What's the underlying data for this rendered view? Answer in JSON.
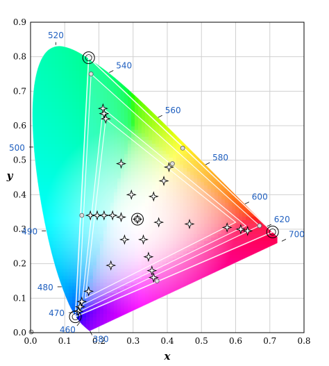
{
  "colors": {
    "background": "#ffffff",
    "grid": "#d0d0d0",
    "wavelength_label": "#1f5fbf",
    "gamut_outline": "#ffffff",
    "marker": "#000000"
  },
  "chart_data": {
    "type": "scatter",
    "title": "",
    "xlabel": "x",
    "ylabel": "y",
    "xlim": [
      0.0,
      0.8
    ],
    "ylim": [
      0.0,
      0.9
    ],
    "grid": true,
    "x_ticks": [
      "0.0",
      "0.1",
      "0.2",
      "0.3",
      "0.4",
      "0.5",
      "0.6",
      "0.7",
      "0.8"
    ],
    "y_ticks": [
      "0.0",
      "0.1",
      "0.2",
      "0.3",
      "0.4",
      "0.5",
      "0.6",
      "0.7",
      "0.8",
      "0.9"
    ],
    "spectral_locus": [
      {
        "nm": 380,
        "x": 0.1741,
        "y": 0.005
      },
      {
        "nm": 410,
        "x": 0.1726,
        "y": 0.0048
      },
      {
        "nm": 430,
        "x": 0.1689,
        "y": 0.0069
      },
      {
        "nm": 450,
        "x": 0.1566,
        "y": 0.0177
      },
      {
        "nm": 460,
        "x": 0.144,
        "y": 0.0297
      },
      {
        "nm": 470,
        "x": 0.1241,
        "y": 0.0578
      },
      {
        "nm": 475,
        "x": 0.1096,
        "y": 0.0868
      },
      {
        "nm": 480,
        "x": 0.0913,
        "y": 0.1327
      },
      {
        "nm": 485,
        "x": 0.0687,
        "y": 0.2007
      },
      {
        "nm": 490,
        "x": 0.0454,
        "y": 0.295
      },
      {
        "nm": 495,
        "x": 0.0235,
        "y": 0.4127
      },
      {
        "nm": 500,
        "x": 0.0082,
        "y": 0.5384
      },
      {
        "nm": 505,
        "x": 0.0039,
        "y": 0.6548
      },
      {
        "nm": 510,
        "x": 0.0139,
        "y": 0.7502
      },
      {
        "nm": 515,
        "x": 0.0389,
        "y": 0.812
      },
      {
        "nm": 520,
        "x": 0.0743,
        "y": 0.8338
      },
      {
        "nm": 525,
        "x": 0.1142,
        "y": 0.8262
      },
      {
        "nm": 530,
        "x": 0.1547,
        "y": 0.8059
      },
      {
        "nm": 540,
        "x": 0.2296,
        "y": 0.7543
      },
      {
        "nm": 550,
        "x": 0.3016,
        "y": 0.6923
      },
      {
        "nm": 560,
        "x": 0.3731,
        "y": 0.6245
      },
      {
        "nm": 570,
        "x": 0.4441,
        "y": 0.5547
      },
      {
        "nm": 580,
        "x": 0.5125,
        "y": 0.4866
      },
      {
        "nm": 590,
        "x": 0.5752,
        "y": 0.4242
      },
      {
        "nm": 600,
        "x": 0.627,
        "y": 0.3725
      },
      {
        "nm": 610,
        "x": 0.6658,
        "y": 0.334
      },
      {
        "nm": 620,
        "x": 0.6915,
        "y": 0.3083
      },
      {
        "nm": 640,
        "x": 0.719,
        "y": 0.2809
      },
      {
        "nm": 700,
        "x": 0.7347,
        "y": 0.2653
      }
    ],
    "wavelength_labels": [
      {
        "text": "520",
        "x": 0.074,
        "y": 0.834,
        "side": "up"
      },
      {
        "text": "540",
        "x": 0.23,
        "y": 0.754,
        "side": "right"
      },
      {
        "text": "560",
        "x": 0.373,
        "y": 0.624,
        "side": "right"
      },
      {
        "text": "580",
        "x": 0.512,
        "y": 0.487,
        "side": "right"
      },
      {
        "text": "600",
        "x": 0.627,
        "y": 0.373,
        "side": "right"
      },
      {
        "text": "620",
        "x": 0.692,
        "y": 0.308,
        "side": "right"
      },
      {
        "text": "700",
        "x": 0.735,
        "y": 0.265,
        "side": "right"
      },
      {
        "text": "500",
        "x": 0.008,
        "y": 0.538,
        "side": "left"
      },
      {
        "text": "490",
        "x": 0.045,
        "y": 0.295,
        "side": "left"
      },
      {
        "text": "480",
        "x": 0.091,
        "y": 0.133,
        "side": "left"
      },
      {
        "text": "470",
        "x": 0.124,
        "y": 0.058,
        "side": "left"
      },
      {
        "text": "460",
        "x": 0.144,
        "y": 0.03,
        "side": "down"
      },
      {
        "text": "380",
        "x": 0.174,
        "y": 0.005,
        "side": "downright"
      }
    ],
    "gamuts": [
      {
        "vertices": [
          [
            0.17,
            0.797
          ],
          [
            0.708,
            0.292
          ],
          [
            0.131,
            0.046
          ]
        ]
      },
      {
        "vertices": [
          [
            0.177,
            0.75
          ],
          [
            0.67,
            0.31
          ],
          [
            0.14,
            0.06
          ]
        ]
      },
      {
        "vertices": [
          [
            0.212,
            0.65
          ],
          [
            0.63,
            0.31
          ],
          [
            0.15,
            0.08
          ]
        ]
      },
      {
        "vertices": [
          [
            0.22,
            0.62
          ],
          [
            0.6,
            0.32
          ],
          [
            0.16,
            0.1
          ]
        ]
      }
    ],
    "circled_points": [
      {
        "x": 0.17,
        "y": 0.797
      },
      {
        "x": 0.708,
        "y": 0.292
      },
      {
        "x": 0.131,
        "y": 0.046
      },
      {
        "x": 0.3127,
        "y": 0.329
      }
    ],
    "small_circles": [
      {
        "x": 0.177,
        "y": 0.75
      },
      {
        "x": 0.445,
        "y": 0.535
      },
      {
        "x": 0.415,
        "y": 0.49
      },
      {
        "x": 0.67,
        "y": 0.31
      },
      {
        "x": 0.15,
        "y": 0.34
      },
      {
        "x": 0.37,
        "y": 0.15
      },
      {
        "x": 0.002,
        "y": 0.002
      }
    ],
    "sparkle_markers": [
      {
        "x": 0.212,
        "y": 0.65
      },
      {
        "x": 0.22,
        "y": 0.62
      },
      {
        "x": 0.215,
        "y": 0.635
      },
      {
        "x": 0.265,
        "y": 0.49
      },
      {
        "x": 0.405,
        "y": 0.48
      },
      {
        "x": 0.39,
        "y": 0.44
      },
      {
        "x": 0.295,
        "y": 0.4
      },
      {
        "x": 0.36,
        "y": 0.395
      },
      {
        "x": 0.24,
        "y": 0.34
      },
      {
        "x": 0.175,
        "y": 0.34
      },
      {
        "x": 0.195,
        "y": 0.34
      },
      {
        "x": 0.215,
        "y": 0.34
      },
      {
        "x": 0.265,
        "y": 0.335
      },
      {
        "x": 0.3127,
        "y": 0.329
      },
      {
        "x": 0.375,
        "y": 0.32
      },
      {
        "x": 0.465,
        "y": 0.315
      },
      {
        "x": 0.575,
        "y": 0.305
      },
      {
        "x": 0.615,
        "y": 0.3
      },
      {
        "x": 0.635,
        "y": 0.295
      },
      {
        "x": 0.275,
        "y": 0.27
      },
      {
        "x": 0.33,
        "y": 0.27
      },
      {
        "x": 0.345,
        "y": 0.22
      },
      {
        "x": 0.235,
        "y": 0.195
      },
      {
        "x": 0.355,
        "y": 0.18
      },
      {
        "x": 0.36,
        "y": 0.16
      },
      {
        "x": 0.17,
        "y": 0.12
      },
      {
        "x": 0.15,
        "y": 0.09
      },
      {
        "x": 0.145,
        "y": 0.075
      },
      {
        "x": 0.14,
        "y": 0.062
      }
    ]
  }
}
